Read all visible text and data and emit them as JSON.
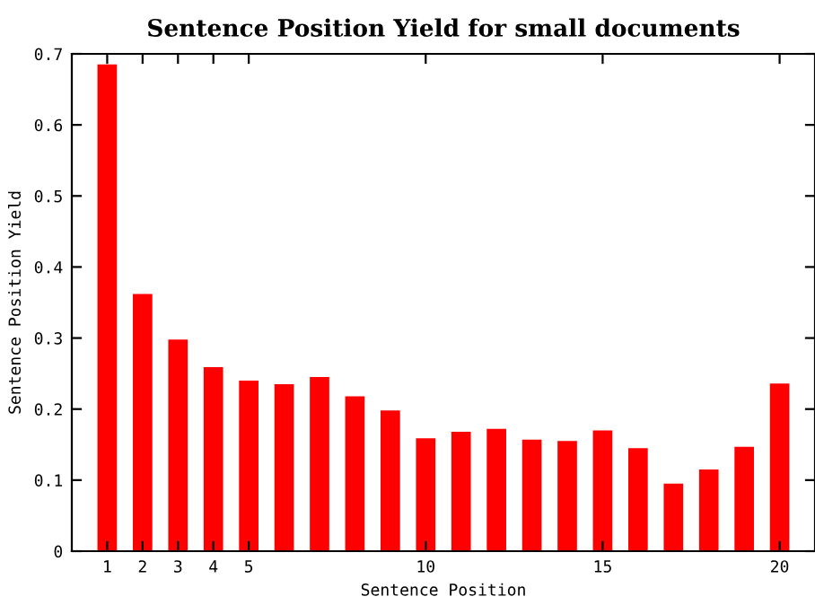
{
  "chart_data": {
    "type": "bar",
    "title": "Sentence Position Yield for small documents",
    "xlabel": "Sentence Position",
    "ylabel": "Sentence Position Yield",
    "x": [
      1,
      2,
      3,
      4,
      5,
      6,
      7,
      8,
      9,
      10,
      11,
      12,
      13,
      14,
      15,
      16,
      17,
      18,
      19,
      20
    ],
    "values": [
      0.685,
      0.362,
      0.298,
      0.259,
      0.24,
      0.235,
      0.245,
      0.218,
      0.198,
      0.159,
      0.168,
      0.172,
      0.157,
      0.155,
      0.17,
      0.145,
      0.095,
      0.115,
      0.147,
      0.236
    ],
    "color": "#ff0000",
    "xlim": [
      0,
      21
    ],
    "xticks": [
      1,
      2,
      3,
      4,
      5,
      10,
      15,
      20
    ],
    "ylim": [
      0,
      0.7
    ],
    "yticks": [
      0,
      0.1,
      0.2,
      0.3,
      0.4,
      0.5,
      0.6,
      0.7
    ],
    "grid": false,
    "legend": false
  }
}
